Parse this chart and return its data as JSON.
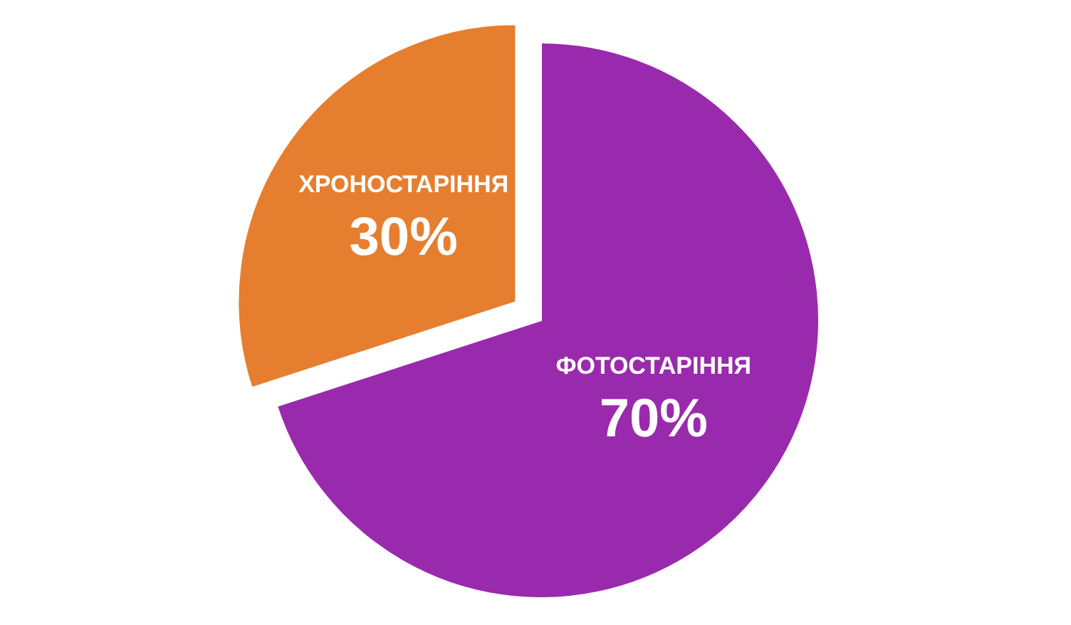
{
  "chart_data": {
    "type": "pie",
    "categories": [
      "ФОТОСТАРІННЯ",
      "ХРОНОСТАРІННЯ"
    ],
    "values": [
      70,
      30
    ],
    "colors": [
      "#9a2aad",
      "#e67e30"
    ],
    "value_labels": [
      "70%",
      "30%"
    ]
  }
}
